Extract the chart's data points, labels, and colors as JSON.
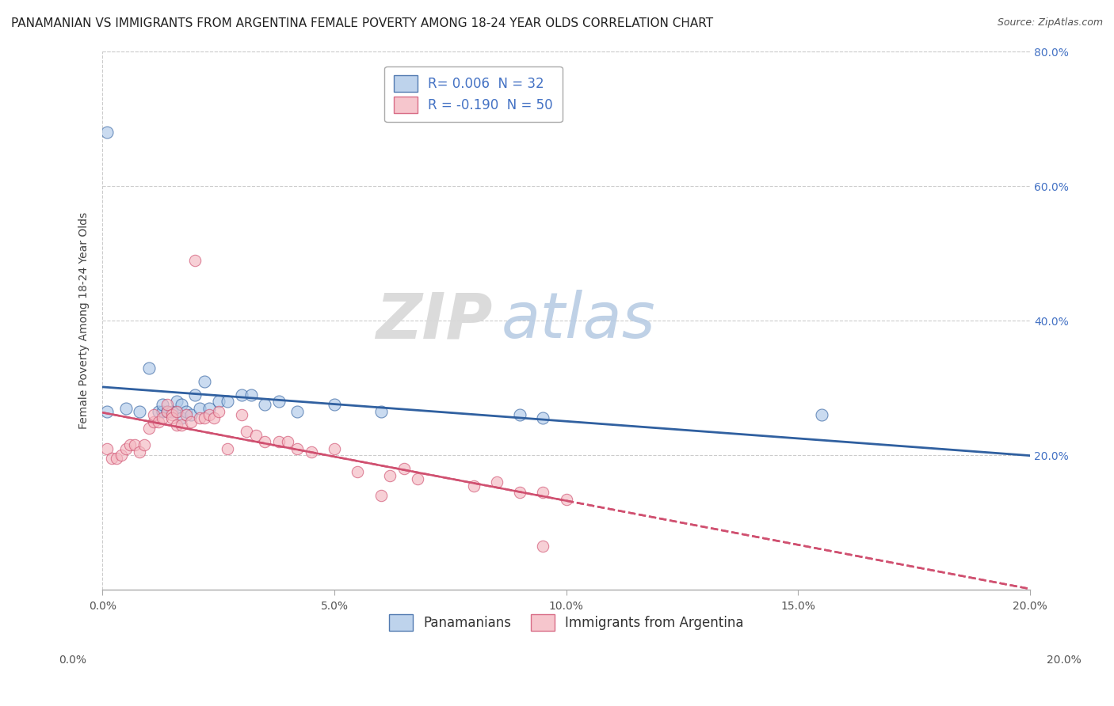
{
  "title": "PANAMANIAN VS IMMIGRANTS FROM ARGENTINA FEMALE POVERTY AMONG 18-24 YEAR OLDS CORRELATION CHART",
  "source": "Source: ZipAtlas.com",
  "ylabel_left": "Female Poverty Among 18-24 Year Olds",
  "xmin": 0.0,
  "xmax": 0.2,
  "ymin": 0.0,
  "ymax": 0.8,
  "blue_R": 0.006,
  "blue_N": 32,
  "pink_R": -0.19,
  "pink_N": 50,
  "blue_color": "#aec9e8",
  "pink_color": "#f4b8c1",
  "blue_line_color": "#3060a0",
  "pink_line_color": "#d05070",
  "grid_color": "#cccccc",
  "legend_label_blue": "Panamanians",
  "legend_label_pink": "Immigrants from Argentina",
  "xtick_labels": [
    "0.0%",
    "5.0%",
    "10.0%",
    "15.0%",
    "20.0%"
  ],
  "xtick_vals": [
    0.0,
    0.05,
    0.1,
    0.15,
    0.2
  ],
  "ytick_labels_right": [
    "20.0%",
    "40.0%",
    "60.0%",
    "80.0%"
  ],
  "ytick_vals_right": [
    0.2,
    0.4,
    0.6,
    0.8
  ],
  "blue_x": [
    0.001,
    0.005,
    0.008,
    0.01,
    0.012,
    0.013,
    0.013,
    0.014,
    0.015,
    0.016,
    0.016,
    0.017,
    0.017,
    0.018,
    0.019,
    0.02,
    0.021,
    0.022,
    0.023,
    0.025,
    0.027,
    0.03,
    0.032,
    0.035,
    0.038,
    0.042,
    0.05,
    0.06,
    0.09,
    0.095,
    0.155,
    0.001
  ],
  "blue_y": [
    0.265,
    0.27,
    0.265,
    0.33,
    0.265,
    0.265,
    0.275,
    0.265,
    0.265,
    0.265,
    0.28,
    0.275,
    0.255,
    0.265,
    0.26,
    0.29,
    0.27,
    0.31,
    0.27,
    0.28,
    0.28,
    0.29,
    0.29,
    0.275,
    0.28,
    0.265,
    0.275,
    0.265,
    0.26,
    0.255,
    0.26,
    0.68
  ],
  "pink_x": [
    0.001,
    0.002,
    0.003,
    0.004,
    0.005,
    0.006,
    0.007,
    0.008,
    0.009,
    0.01,
    0.011,
    0.011,
    0.012,
    0.013,
    0.014,
    0.014,
    0.015,
    0.015,
    0.016,
    0.016,
    0.017,
    0.018,
    0.019,
    0.02,
    0.021,
    0.022,
    0.023,
    0.024,
    0.025,
    0.027,
    0.03,
    0.031,
    0.033,
    0.035,
    0.038,
    0.04,
    0.042,
    0.045,
    0.05,
    0.055,
    0.06,
    0.062,
    0.065,
    0.068,
    0.08,
    0.085,
    0.09,
    0.095,
    0.1,
    0.095
  ],
  "pink_y": [
    0.21,
    0.195,
    0.195,
    0.2,
    0.21,
    0.215,
    0.215,
    0.205,
    0.215,
    0.24,
    0.25,
    0.26,
    0.25,
    0.255,
    0.265,
    0.275,
    0.26,
    0.255,
    0.265,
    0.245,
    0.245,
    0.26,
    0.25,
    0.49,
    0.255,
    0.255,
    0.26,
    0.255,
    0.265,
    0.21,
    0.26,
    0.235,
    0.23,
    0.22,
    0.22,
    0.22,
    0.21,
    0.205,
    0.21,
    0.175,
    0.14,
    0.17,
    0.18,
    0.165,
    0.155,
    0.16,
    0.145,
    0.145,
    0.135,
    0.065
  ],
  "title_fontsize": 11,
  "source_fontsize": 9,
  "axis_label_fontsize": 10,
  "tick_fontsize": 10,
  "legend_fontsize": 12,
  "marker_size": 90
}
